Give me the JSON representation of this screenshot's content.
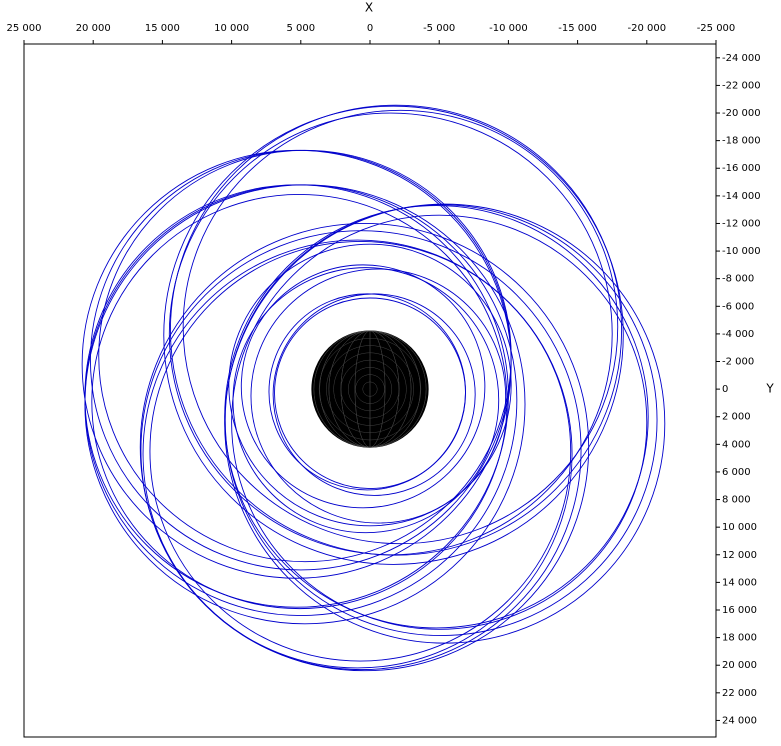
{
  "chart_data": {
    "type": "orbit",
    "xlabel": "X",
    "ylabel": "Y",
    "xlim": [
      25000,
      -25000
    ],
    "ylim": [
      -25000,
      25200
    ],
    "xticks": [
      {
        "value": 25000,
        "label": "25 000"
      },
      {
        "value": 20000,
        "label": "20 000"
      },
      {
        "value": 15000,
        "label": "15 000"
      },
      {
        "value": 10000,
        "label": "10 000"
      },
      {
        "value": 5000,
        "label": "5 000"
      },
      0,
      {
        "value": -5000,
        "label": "-5 000"
      },
      {
        "value": -10000,
        "label": "-10 000"
      },
      {
        "value": -15000,
        "label": "-15 000"
      },
      {
        "value": -20000,
        "label": "-20 000"
      },
      {
        "value": -25000,
        "label": "-25 000"
      }
    ],
    "yticks": [
      {
        "value": -24000,
        "label": "-24 000"
      },
      {
        "value": -22000,
        "label": "-22 000"
      },
      {
        "value": -20000,
        "label": "-20 000"
      },
      {
        "value": -18000,
        "label": "-18 000"
      },
      {
        "value": -16000,
        "label": "-16 000"
      },
      {
        "value": -14000,
        "label": "-14 000"
      },
      {
        "value": -12000,
        "label": "-12 000"
      },
      {
        "value": -10000,
        "label": "-10 000"
      },
      {
        "value": -8000,
        "label": "-8 000"
      },
      {
        "value": -6000,
        "label": "-6 000"
      },
      {
        "value": -4000,
        "label": "-4 000"
      },
      {
        "value": -2000,
        "label": "-2 000"
      },
      0,
      {
        "value": 2000,
        "label": "2 000"
      },
      {
        "value": 4000,
        "label": "4 000"
      },
      {
        "value": 6000,
        "label": "6 000"
      },
      {
        "value": 8000,
        "label": "8 000"
      },
      {
        "value": 10000,
        "label": "10 000"
      },
      {
        "value": 12000,
        "label": "12 000"
      },
      {
        "value": 14000,
        "label": "14 000"
      },
      {
        "value": 16000,
        "label": "16 000"
      },
      {
        "value": 18000,
        "label": "18 000"
      },
      {
        "value": 20000,
        "label": "20 000"
      },
      {
        "value": 22000,
        "label": "22 000"
      },
      {
        "value": 24000,
        "label": "24 000"
      }
    ],
    "color": "#0000cc",
    "earth": {
      "x": 0,
      "y": 0,
      "r": 4200,
      "color": "#000000"
    },
    "orbits": [
      {
        "x": -1880,
        "y": -4270,
        "r": 16300
      },
      {
        "x": -1500,
        "y": -4000,
        "r": 16000
      },
      {
        "x": -2200,
        "y": -4500,
        "r": 15700
      },
      {
        "x": -1700,
        "y": -3900,
        "r": 16600
      },
      {
        "x": 4990,
        "y": 800,
        "r": 15600
      },
      {
        "x": 5300,
        "y": 500,
        "r": 15300
      },
      {
        "x": 4700,
        "y": 1100,
        "r": 15900
      },
      {
        "x": 5100,
        "y": 900,
        "r": 15000
      },
      {
        "x": -5140,
        "y": 2250,
        "r": 15600
      },
      {
        "x": -4800,
        "y": 2000,
        "r": 15300
      },
      {
        "x": -5400,
        "y": 2500,
        "r": 15900
      },
      {
        "x": -5000,
        "y": 2400,
        "r": 15000
      },
      {
        "x": 650,
        "y": 4420,
        "r": 15900
      },
      {
        "x": 900,
        "y": 4700,
        "r": 15500
      },
      {
        "x": 400,
        "y": 4200,
        "r": 16200
      },
      {
        "x": 700,
        "y": 4500,
        "r": 15200
      },
      {
        "x": 5000,
        "y": -2100,
        "r": 15200
      },
      {
        "x": 4700,
        "y": -2400,
        "r": 14900
      },
      {
        "x": 5300,
        "y": -1800,
        "r": 15500
      },
      {
        "x": 0,
        "y": 300,
        "r": 6900
      },
      {
        "x": 200,
        "y": 200,
        "r": 7100
      },
      {
        "x": -300,
        "y": 400,
        "r": 7300
      },
      {
        "x": 500,
        "y": -200,
        "r": 8800
      },
      {
        "x": -600,
        "y": 500,
        "r": 9200
      },
      {
        "x": 300,
        "y": 800,
        "r": 9600
      },
      {
        "x": 0,
        "y": -300,
        "r": 10200
      }
    ]
  }
}
